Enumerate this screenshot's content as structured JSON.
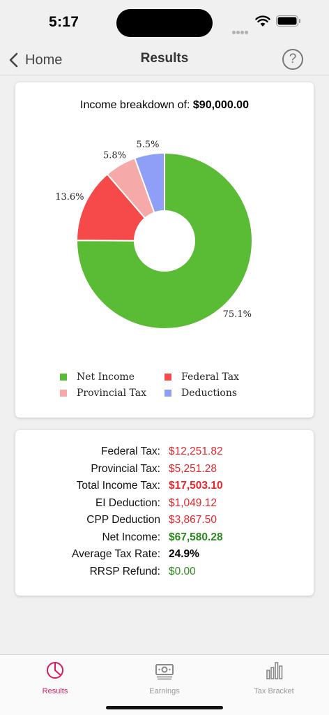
{
  "status": {
    "time": "5:17"
  },
  "nav": {
    "back_label": "Home",
    "title": "Results",
    "help_label": "?"
  },
  "chart": {
    "title_prefix": "Income breakdown of:",
    "title_amount": "$90,000.00"
  },
  "chart_data": {
    "type": "pie",
    "donut": true,
    "categories": [
      "Net Income",
      "Federal Tax",
      "Provincial Tax",
      "Deductions"
    ],
    "values": [
      75.1,
      13.6,
      5.8,
      5.5
    ],
    "labels": [
      "75.1%",
      "13.6%",
      "5.8%",
      "5.5%"
    ],
    "colors": [
      "#5abb34",
      "#f64a4a",
      "#f6a9a9",
      "#8f9ff7"
    ],
    "legend_placement": "bottom"
  },
  "results": [
    {
      "label": "Federal Tax:",
      "value": "$12,251.82"
    },
    {
      "label": "Provincial Tax:",
      "value": "$5,251.28"
    },
    {
      "label": "Total Income Tax:",
      "value": "$17,503.10"
    },
    {
      "label": "EI Deduction:",
      "value": "$1,049.12"
    },
    {
      "label": "CPP Deduction",
      "value": "$3,867.50"
    },
    {
      "label": "Net Income:",
      "value": "$67,580.28"
    },
    {
      "label": "Average Tax Rate:",
      "value": "24.9%"
    },
    {
      "label": "RRSP Refund:",
      "value": "$0.00"
    }
  ],
  "tabs": [
    {
      "label": "Results",
      "icon": "pie-chart-icon",
      "active": true
    },
    {
      "label": "Earnings",
      "icon": "banknote-icon",
      "active": false
    },
    {
      "label": "Tax Bracket",
      "icon": "bar-chart-icon",
      "active": false
    }
  ]
}
